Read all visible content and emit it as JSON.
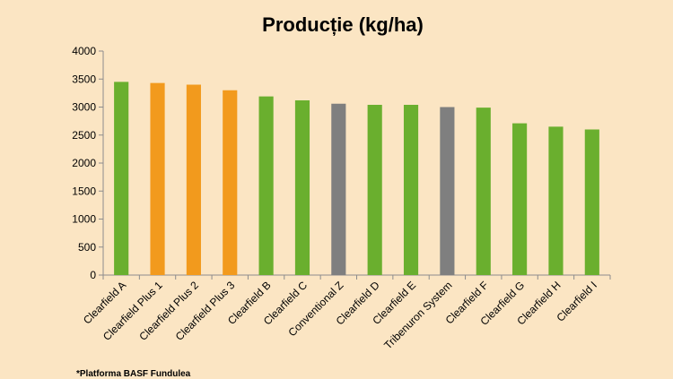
{
  "chart_data": {
    "type": "bar",
    "title": "Producție (kg/ha)",
    "xlabel": "",
    "ylabel": "",
    "ylim": [
      0,
      4000
    ],
    "yticks": [
      0,
      500,
      1000,
      1500,
      2000,
      2500,
      3000,
      3500,
      4000
    ],
    "categories": [
      "Clearfield A",
      "Clearfield Plus 1",
      "Clearfield Plus 2",
      "Clearfield Plus 3",
      "Clearfield B",
      "Clearfield C",
      "Conventional Z",
      "Clearfield D",
      "Clearfield E",
      "Tribenuron System",
      "Clearfield F",
      "Clearfield G",
      "Clearfield H",
      "Clearfield I"
    ],
    "values": [
      3450,
      3430,
      3400,
      3300,
      3190,
      3120,
      3060,
      3040,
      3040,
      3000,
      2990,
      2710,
      2650,
      2600
    ],
    "bar_colors": [
      "#6aaf2e",
      "#f29a1d",
      "#f29a1d",
      "#f29a1d",
      "#6aaf2e",
      "#6aaf2e",
      "#7f7f7f",
      "#6aaf2e",
      "#6aaf2e",
      "#7f7f7f",
      "#6aaf2e",
      "#6aaf2e",
      "#6aaf2e",
      "#6aaf2e"
    ],
    "grid": false,
    "legend": "none"
  },
  "colors": {
    "background": "#fbe5c3",
    "clearfield": "#6aaf2e",
    "clearfield_plus": "#f29a1d",
    "other": "#7f7f7f",
    "axis": "#8c8c8c"
  },
  "footnote": "*Platforma BASF Fundulea"
}
